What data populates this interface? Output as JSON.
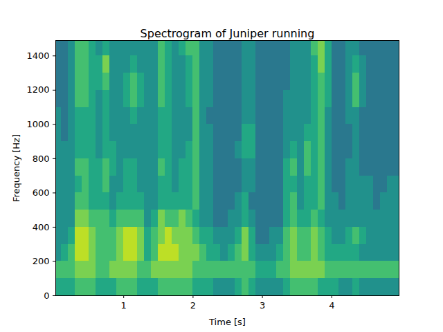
{
  "chart_data": {
    "type": "heatmap",
    "title": "Spectrogram of Juniper running",
    "x_label": "Time [s]",
    "y_label": "Frequency [Hz]",
    "color": "viridis",
    "xlim": [
      0.02,
      4.97
    ],
    "ylim": [
      0,
      1490
    ],
    "xticks": [
      1,
      2,
      3,
      4
    ],
    "yticks": [
      0,
      200,
      400,
      600,
      800,
      1000,
      1200,
      1400
    ],
    "zlim": [
      0,
      10
    ],
    "x": [
      0.05,
      0.15,
      0.25,
      0.35,
      0.45,
      0.55,
      0.65,
      0.75,
      0.85,
      0.95,
      1.05,
      1.15,
      1.25,
      1.35,
      1.45,
      1.55,
      1.65,
      1.75,
      1.85,
      1.95,
      2.05,
      2.15,
      2.25,
      2.35,
      2.45,
      2.55,
      2.65,
      2.75,
      2.85,
      2.95,
      3.05,
      3.15,
      3.25,
      3.35,
      3.45,
      3.55,
      3.65,
      3.75,
      3.85,
      3.95,
      4.05,
      4.15,
      4.25,
      4.35,
      4.45,
      4.55,
      4.65,
      4.75,
      4.85,
      4.95
    ],
    "y": [
      50,
      150,
      250,
      350,
      450,
      550,
      650,
      750,
      850,
      950,
      1050,
      1150,
      1250,
      1350,
      1450
    ],
    "z": [
      [
        6,
        6,
        6,
        7,
        7,
        7,
        6,
        6,
        6,
        7,
        7,
        7,
        6,
        6,
        6,
        7,
        7,
        7,
        7,
        7,
        6,
        6,
        6,
        5,
        5,
        5,
        6,
        7,
        6,
        5,
        5,
        5,
        5,
        6,
        7,
        7,
        7,
        7,
        6,
        6,
        6,
        5,
        5,
        6,
        5,
        5,
        5,
        5,
        5,
        5
      ],
      [
        7,
        7,
        7,
        8,
        8,
        8,
        7,
        7,
        8,
        8,
        8,
        8,
        7,
        7,
        8,
        8,
        8,
        8,
        8,
        8,
        7,
        7,
        7,
        7,
        7,
        7,
        7,
        7,
        7,
        6,
        6,
        6,
        7,
        7,
        8,
        8,
        8,
        8,
        8,
        7,
        7,
        7,
        7,
        7,
        7,
        7,
        7,
        7,
        7,
        7
      ],
      [
        5,
        6,
        7,
        9,
        9,
        8,
        7,
        7,
        7,
        8,
        9,
        9,
        8,
        6,
        7,
        9,
        9,
        9,
        8,
        8,
        8,
        7,
        6,
        6,
        5,
        6,
        7,
        8,
        6,
        5,
        5,
        5,
        6,
        7,
        8,
        7,
        7,
        8,
        7,
        6,
        6,
        6,
        6,
        6,
        5,
        5,
        5,
        5,
        5,
        5
      ],
      [
        5,
        5,
        6,
        9,
        9,
        8,
        7,
        7,
        7,
        8,
        9,
        9,
        8,
        6,
        7,
        8,
        9,
        8,
        8,
        8,
        7,
        6,
        6,
        5,
        5,
        5,
        6,
        8,
        6,
        4,
        4,
        5,
        5,
        7,
        8,
        7,
        7,
        8,
        7,
        6,
        5,
        5,
        6,
        7,
        6,
        5,
        5,
        5,
        5,
        5
      ],
      [
        5,
        5,
        5,
        8,
        8,
        7,
        7,
        7,
        6,
        7,
        7,
        7,
        7,
        5,
        6,
        8,
        7,
        7,
        8,
        7,
        6,
        5,
        5,
        4,
        4,
        5,
        5,
        6,
        5,
        4,
        4,
        4,
        4,
        6,
        7,
        6,
        6,
        7,
        6,
        5,
        5,
        5,
        5,
        5,
        5,
        5,
        5,
        5,
        5,
        5
      ],
      [
        5,
        5,
        5,
        7,
        7,
        6,
        6,
        6,
        5,
        6,
        6,
        6,
        6,
        5,
        5,
        6,
        6,
        6,
        6,
        6,
        7,
        5,
        5,
        4,
        4,
        4,
        5,
        6,
        4,
        4,
        4,
        4,
        4,
        6,
        7,
        5,
        6,
        6,
        7,
        5,
        5,
        4,
        5,
        5,
        5,
        5,
        4,
        5,
        5,
        5
      ],
      [
        5,
        5,
        5,
        6,
        7,
        6,
        6,
        7,
        5,
        5,
        6,
        6,
        5,
        5,
        5,
        6,
        6,
        5,
        6,
        6,
        7,
        5,
        5,
        4,
        4,
        4,
        4,
        5,
        5,
        4,
        4,
        4,
        4,
        6,
        6,
        5,
        6,
        6,
        7,
        5,
        4,
        4,
        5,
        5,
        5,
        5,
        4,
        4,
        5,
        5
      ],
      [
        5,
        5,
        5,
        7,
        7,
        6,
        6,
        7,
        6,
        5,
        6,
        6,
        5,
        5,
        5,
        7,
        6,
        5,
        6,
        6,
        7,
        5,
        5,
        4,
        4,
        4,
        4,
        5,
        5,
        4,
        4,
        4,
        4,
        6,
        7,
        5,
        7,
        6,
        7,
        5,
        4,
        4,
        5,
        5,
        4,
        4,
        4,
        4,
        4,
        4
      ],
      [
        5,
        5,
        5,
        6,
        6,
        6,
        5,
        6,
        6,
        5,
        5,
        5,
        5,
        5,
        5,
        6,
        6,
        5,
        5,
        6,
        7,
        5,
        5,
        4,
        4,
        4,
        5,
        6,
        6,
        4,
        4,
        4,
        4,
        5,
        6,
        5,
        7,
        6,
        7,
        5,
        4,
        4,
        4,
        5,
        4,
        4,
        4,
        4,
        4,
        4
      ],
      [
        5,
        4,
        5,
        6,
        6,
        6,
        5,
        6,
        5,
        5,
        5,
        5,
        5,
        5,
        5,
        6,
        6,
        5,
        5,
        5,
        7,
        5,
        5,
        4,
        4,
        4,
        4,
        6,
        6,
        4,
        4,
        4,
        4,
        5,
        5,
        5,
        6,
        6,
        7,
        5,
        4,
        4,
        4,
        5,
        4,
        4,
        4,
        4,
        4,
        4
      ],
      [
        5,
        4,
        5,
        6,
        6,
        6,
        5,
        6,
        5,
        5,
        5,
        6,
        5,
        5,
        5,
        6,
        6,
        5,
        5,
        5,
        7,
        5,
        4,
        4,
        4,
        4,
        4,
        5,
        5,
        4,
        4,
        4,
        4,
        5,
        5,
        5,
        5,
        6,
        7,
        5,
        4,
        4,
        5,
        5,
        4,
        4,
        4,
        4,
        4,
        4
      ],
      [
        4,
        4,
        5,
        7,
        7,
        6,
        5,
        6,
        5,
        5,
        6,
        7,
        6,
        5,
        5,
        7,
        6,
        5,
        5,
        6,
        7,
        5,
        5,
        4,
        4,
        4,
        4,
        5,
        5,
        4,
        4,
        4,
        4,
        5,
        5,
        5,
        5,
        6,
        7,
        6,
        4,
        4,
        5,
        7,
        5,
        4,
        4,
        4,
        4,
        4
      ],
      [
        4,
        4,
        5,
        7,
        7,
        6,
        6,
        7,
        5,
        5,
        6,
        7,
        6,
        5,
        5,
        7,
        6,
        5,
        5,
        6,
        7,
        5,
        5,
        4,
        4,
        4,
        4,
        5,
        5,
        4,
        4,
        4,
        4,
        4,
        5,
        5,
        5,
        6,
        7,
        6,
        4,
        4,
        5,
        7,
        5,
        4,
        4,
        4,
        4,
        4
      ],
      [
        4,
        4,
        5,
        7,
        7,
        6,
        6,
        8,
        5,
        5,
        5,
        6,
        5,
        5,
        5,
        7,
        6,
        5,
        5,
        6,
        7,
        5,
        5,
        4,
        4,
        4,
        4,
        5,
        5,
        4,
        4,
        4,
        4,
        4,
        5,
        5,
        5,
        6,
        8,
        6,
        4,
        4,
        5,
        6,
        5,
        4,
        4,
        4,
        4,
        4
      ],
      [
        4,
        4,
        5,
        7,
        7,
        6,
        5,
        6,
        5,
        5,
        5,
        5,
        5,
        5,
        5,
        7,
        6,
        5,
        6,
        7,
        7,
        5,
        5,
        4,
        4,
        4,
        4,
        5,
        5,
        4,
        4,
        4,
        4,
        4,
        5,
        5,
        5,
        7,
        8,
        6,
        4,
        4,
        5,
        5,
        4,
        4,
        4,
        4,
        4,
        4
      ]
    ]
  }
}
